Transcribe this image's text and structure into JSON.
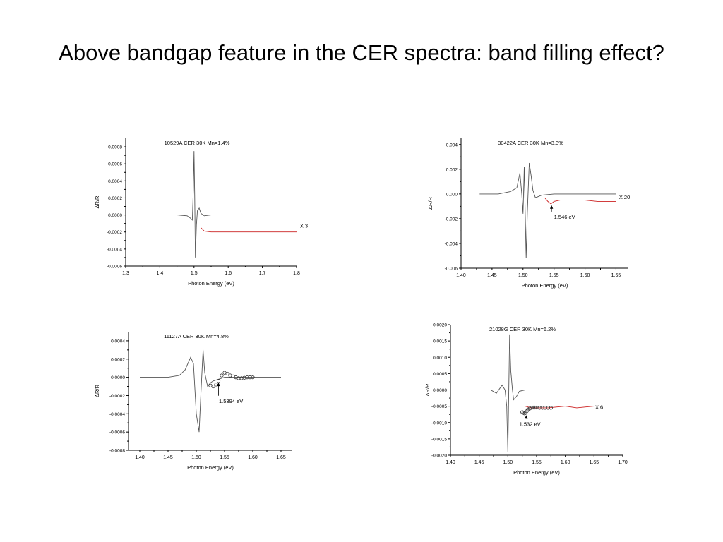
{
  "slide": {
    "title": "Above bandgap feature in the CER spectra: band filling effect?"
  },
  "chart_data": [
    {
      "type": "line",
      "title": "10529A CER 30K Mn=1.4%",
      "xlabel": "Photon Energy (eV)",
      "ylabel": "ΔR/R",
      "xlim": [
        1.3,
        1.8
      ],
      "ylim": [
        -0.0006,
        0.0009
      ],
      "xticks": [
        1.3,
        1.4,
        1.5,
        1.6,
        1.7,
        1.8
      ],
      "xtick_labels": [
        "1.3",
        "1.4",
        "1.5",
        "1.6",
        "1.7",
        "1.8"
      ],
      "yticks": [
        -0.0006,
        -0.0004,
        -0.0002,
        0.0,
        0.0002,
        0.0004,
        0.0006,
        0.0008
      ],
      "ytick_labels": [
        "-0.0006",
        "-0.0004",
        "-0.0002",
        "0.0000",
        "0.0002",
        "0.0004",
        "0.0006",
        "0.0008"
      ],
      "grid": false,
      "series": [
        {
          "color": "#555555",
          "style": "line",
          "x": [
            1.35,
            1.4,
            1.45,
            1.48,
            1.49,
            1.495,
            1.498,
            1.5,
            1.502,
            1.504,
            1.507,
            1.51,
            1.515,
            1.52,
            1.53,
            1.55,
            1.6,
            1.65,
            1.7,
            1.75,
            1.8
          ],
          "y": [
            0.0,
            0.0,
            0.0,
            -1e-05,
            -4e-05,
            -6e-05,
            0.0003,
            0.00075,
            0.0002,
            -0.0005,
            -0.00012,
            5e-05,
            8e-05,
            2e-05,
            -1e-05,
            0.0,
            0.0,
            0.0,
            0.0,
            0.0,
            0.0
          ]
        },
        {
          "color": "#cc2222",
          "style": "line",
          "x": [
            1.52,
            1.53,
            1.55,
            1.6,
            1.65,
            1.7,
            1.75,
            1.8
          ],
          "y": [
            -0.00015,
            -0.00019,
            -0.0002,
            -0.0002,
            -0.0002,
            -0.0002,
            -0.0002,
            -0.0002
          ]
        }
      ],
      "annotations": [
        {
          "text": "X 3",
          "x": 1.81,
          "y": -0.00015
        }
      ]
    },
    {
      "type": "line",
      "title": "30422A CER 30K Mn=3.3%",
      "xlabel": "Photon Energy (eV)",
      "ylabel": "ΔR/R",
      "xlim": [
        1.4,
        1.67
      ],
      "ylim": [
        -0.006,
        0.0045
      ],
      "xticks": [
        1.4,
        1.45,
        1.5,
        1.55,
        1.6,
        1.65
      ],
      "xtick_labels": [
        "1.40",
        "1.45",
        "1.50",
        "1.55",
        "1.60",
        "1.65"
      ],
      "yticks": [
        -0.006,
        -0.004,
        -0.002,
        0.0,
        0.002,
        0.004
      ],
      "ytick_labels": [
        "-0.006",
        "-0.004",
        "-0.002",
        "0.000",
        "0.002",
        "0.004"
      ],
      "grid": false,
      "series": [
        {
          "color": "#555555",
          "style": "line",
          "x": [
            1.43,
            1.46,
            1.48,
            1.49,
            1.495,
            1.498,
            1.5,
            1.502,
            1.505,
            1.507,
            1.51,
            1.513,
            1.516,
            1.52,
            1.525,
            1.53,
            1.55,
            1.6,
            1.65
          ],
          "y": [
            0.0,
            0.0,
            0.0002,
            0.0005,
            0.0017,
            0.0,
            -0.0016,
            0.0022,
            -0.0052,
            -0.0015,
            0.0025,
            0.0015,
            0.0003,
            -0.0003,
            -0.0002,
            -0.0001,
            0.0,
            0.0,
            0.0
          ]
        },
        {
          "color": "#cc2222",
          "style": "line",
          "x": [
            1.535,
            1.54,
            1.545,
            1.55,
            1.56,
            1.58,
            1.6,
            1.62,
            1.65
          ],
          "y": [
            -0.0003,
            -0.0006,
            -0.0008,
            -0.0006,
            -0.0005,
            -0.0005,
            -0.0005,
            -0.0006,
            -0.0006
          ]
        }
      ],
      "annotations": [
        {
          "text": "X 20",
          "x": 1.655,
          "y": -0.0004
        },
        {
          "text": "1.546 eV",
          "x": 1.55,
          "y": -0.002,
          "arrow_to": [
            1.546,
            -0.00085
          ]
        }
      ]
    },
    {
      "type": "line",
      "title": "11127A CER 30K Mn=4.8%",
      "xlabel": "Photon Energy (eV)",
      "ylabel": "ΔR/R",
      "xlim": [
        1.38,
        1.67
      ],
      "ylim": [
        -0.0008,
        0.0005
      ],
      "xticks": [
        1.4,
        1.45,
        1.5,
        1.55,
        1.6,
        1.65
      ],
      "xtick_labels": [
        "1.40",
        "1.45",
        "1.50",
        "1.55",
        "1.60",
        "1.65"
      ],
      "yticks": [
        -0.0008,
        -0.0006,
        -0.0004,
        -0.0002,
        0.0,
        0.0002,
        0.0004
      ],
      "ytick_labels": [
        "-0.0008",
        "-0.0006",
        "-0.0004",
        "-0.0002",
        "0.0000",
        "0.0002",
        "0.0004"
      ],
      "grid": false,
      "series": [
        {
          "color": "#555555",
          "style": "line",
          "x": [
            1.4,
            1.45,
            1.47,
            1.48,
            1.49,
            1.495,
            1.5,
            1.505,
            1.508,
            1.512,
            1.515,
            1.52,
            1.525,
            1.53,
            1.54,
            1.55,
            1.58,
            1.6,
            1.65
          ],
          "y": [
            0.0,
            0.0,
            2e-05,
            8e-05,
            0.00022,
            0.00015,
            -0.0004,
            -0.0006,
            -0.0002,
            0.0003,
            5e-05,
            -0.0001,
            -6e-05,
            -4e-05,
            -2e-05,
            0.0,
            0.0,
            0.0,
            0.0
          ]
        },
        {
          "color": "#333333",
          "style": "markers",
          "x": [
            1.525,
            1.53,
            1.535,
            1.5394,
            1.545,
            1.55,
            1.555,
            1.56,
            1.565,
            1.57,
            1.575,
            1.58,
            1.585,
            1.59,
            1.595,
            1.6
          ],
          "y": [
            -9e-05,
            -0.0001,
            -8e-05,
            -4e-05,
            2e-05,
            5e-05,
            4e-05,
            2e-05,
            1e-05,
            0.0,
            -1e-05,
            -1e-05,
            -5e-06,
            0.0,
            0.0,
            0.0
          ]
        }
      ],
      "annotations": [
        {
          "text": "1.5394 eV",
          "x": 1.54,
          "y": -0.00028,
          "arrow_to": [
            1.5394,
            -5e-05
          ]
        }
      ]
    },
    {
      "type": "line",
      "title": "21028G CER 30K Mn=6.2%",
      "xlabel": "Photon Energy (eV)",
      "ylabel": "ΔR/R",
      "xlim": [
        1.4,
        1.7
      ],
      "ylim": [
        -0.002,
        0.002
      ],
      "xticks": [
        1.4,
        1.45,
        1.5,
        1.55,
        1.6,
        1.65,
        1.7
      ],
      "xtick_labels": [
        "1.40",
        "1.45",
        "1.50",
        "1.55",
        "1.60",
        "1.65",
        "1.70"
      ],
      "yticks": [
        -0.002,
        -0.0015,
        -0.001,
        -0.0005,
        0.0,
        0.0005,
        0.001,
        0.0015,
        0.002
      ],
      "ytick_labels": [
        "-0.0020",
        "-0.0015",
        "-0.0010",
        "-0.0005",
        "0.0000",
        "0.0005",
        "0.0010",
        "0.0015",
        "0.0020"
      ],
      "grid": false,
      "series": [
        {
          "color": "#555555",
          "style": "line",
          "x": [
            1.43,
            1.47,
            1.48,
            1.49,
            1.495,
            1.498,
            1.5,
            1.503,
            1.505,
            1.508,
            1.51,
            1.515,
            1.52,
            1.53,
            1.55,
            1.6,
            1.65
          ],
          "y": [
            0.0,
            0.0,
            -0.0001,
            0.00015,
            0.0,
            -0.0005,
            -0.0019,
            0.0017,
            0.0006,
            0.0,
            -0.0003,
            -0.0002,
            -4e-05,
            0.0,
            0.0,
            0.0,
            0.0
          ]
        },
        {
          "color": "#cc2222",
          "style": "line",
          "x": [
            1.53,
            1.54,
            1.55,
            1.57,
            1.6,
            1.62,
            1.65
          ],
          "y": [
            -0.0005,
            -0.00055,
            -0.00055,
            -0.00055,
            -0.0005,
            -0.00055,
            -0.0005
          ]
        },
        {
          "color": "#333333",
          "style": "markers",
          "x": [
            1.525,
            1.527,
            1.529,
            1.531,
            1.533,
            1.535,
            1.538,
            1.541,
            1.544,
            1.547,
            1.55,
            1.555,
            1.56,
            1.565,
            1.57,
            1.575
          ],
          "y": [
            -0.00068,
            -0.0007,
            -0.00072,
            -0.0007,
            -0.00065,
            -0.0006,
            -0.00057,
            -0.00055,
            -0.00054,
            -0.00054,
            -0.00054,
            -0.00055,
            -0.00055,
            -0.00055,
            -0.00055,
            -0.00055
          ]
        }
      ],
      "annotations": [
        {
          "text": "X 6",
          "x": 1.652,
          "y": -0.00058
        },
        {
          "text": "1.532 eV",
          "x": 1.52,
          "y": -0.0011,
          "arrow_to": [
            1.532,
            -0.00075
          ]
        }
      ]
    }
  ]
}
